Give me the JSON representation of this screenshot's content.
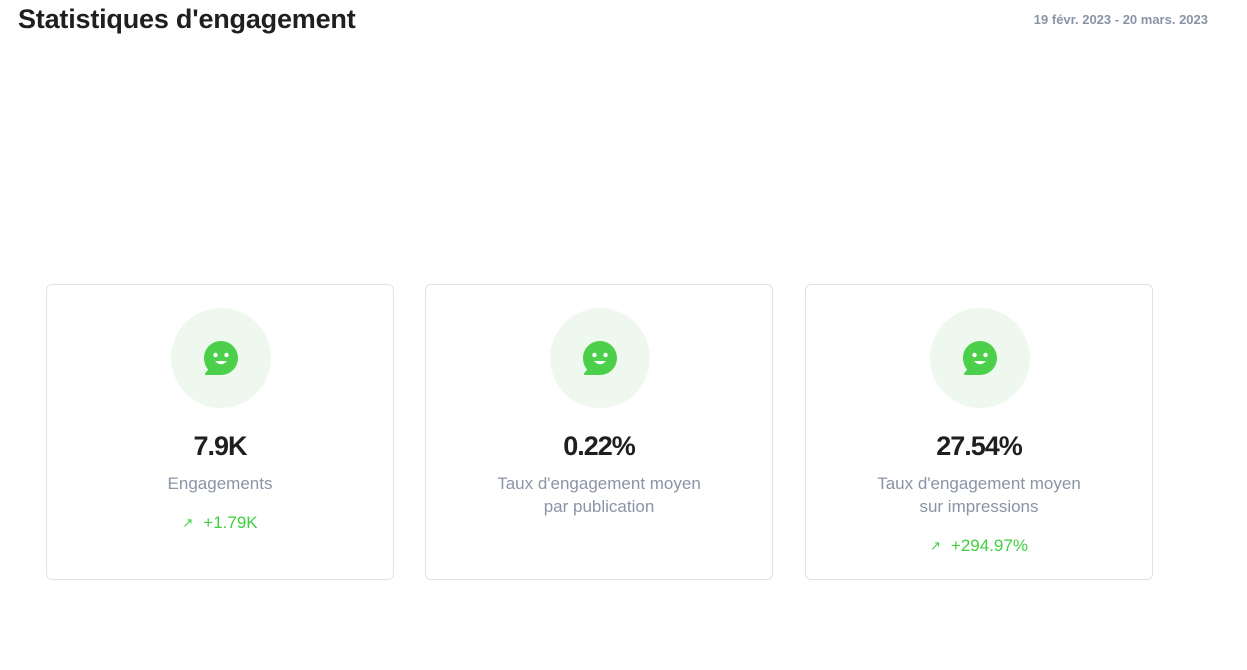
{
  "header": {
    "title": "Statistiques d'engagement",
    "date_range": "19 févr. 2023 - 20 mars. 2023"
  },
  "colors": {
    "accent": "#3fcf3f",
    "icon_bg": "#eef8ee",
    "muted_text": "#8a94a6"
  },
  "cards": [
    {
      "icon": "smiley-chat-icon",
      "value": "7.9K",
      "label": "Engagements",
      "change_icon": "arrow-up-right-icon",
      "change": "+1.79K"
    },
    {
      "icon": "smiley-chat-icon",
      "value": "0.22%",
      "label_line1": "Taux d'engagement moyen",
      "label_line2": "par publication"
    },
    {
      "icon": "smiley-chat-icon",
      "value": "27.54%",
      "label_line1": "Taux d'engagement moyen",
      "label_line2": "sur impressions",
      "change_icon": "arrow-up-right-icon",
      "change": "+294.97%"
    }
  ]
}
